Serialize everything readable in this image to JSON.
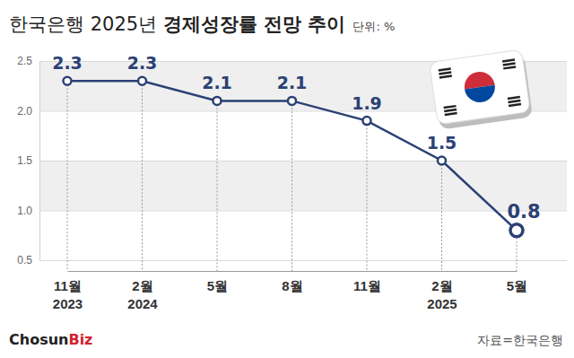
{
  "chart_data": {
    "type": "line",
    "title": "한국은행 2025년 경제성장률 전망 추이",
    "subtitle": "단위: %",
    "annotations": [
      "ChosunBiz",
      "자료=한국은행"
    ],
    "categories": [
      "11월\n2023",
      "2월\n2024",
      "5월",
      "8월",
      "11월",
      "2월\n2025",
      "5월"
    ],
    "values": [
      2.3,
      2.3,
      2.1,
      2.1,
      1.9,
      1.5,
      0.8
    ],
    "color": "#2b4174",
    "marker": "circle",
    "ylim": [
      0.5,
      2.5
    ],
    "yticks": [
      {
        "value": 0.5,
        "label": "0.5"
      },
      {
        "value": 1.0,
        "label": "1.0"
      },
      {
        "value": 1.5,
        "label": "1.5"
      },
      {
        "value": 2.0,
        "label": "2.0"
      },
      {
        "value": 2.5,
        "label": "2.5"
      }
    ],
    "grid": true,
    "data_labels": true
  }
}
